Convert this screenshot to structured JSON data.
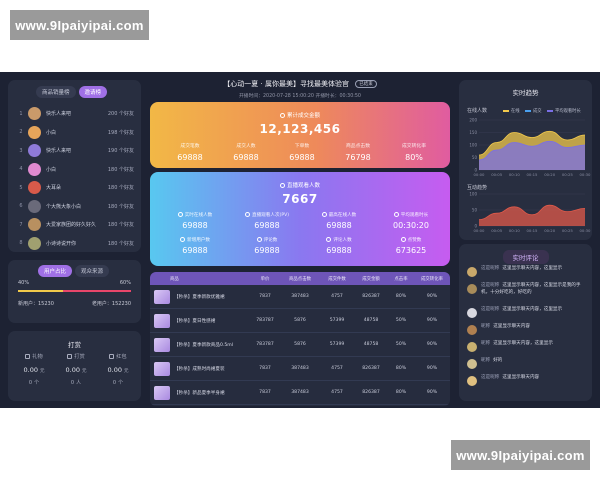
{
  "watermark": "www.9Ipaiyipai.com",
  "header": {
    "title": "【心动一夏 · 属你最美】寻找最美体验官",
    "badge": "已结束",
    "subtitle": "开播时间：2020-07-28 15:00:20      开播时长：00:30:50"
  },
  "ranking": {
    "tabs": [
      "商品销量榜",
      "邀请榜"
    ],
    "active_tab": 1,
    "rows": [
      {
        "rank": "1",
        "name": "快乐人来吧",
        "value": "200 个好友",
        "color": "#c99a6a"
      },
      {
        "rank": "2",
        "name": "小白",
        "value": "198 个好友",
        "color": "#e6a45a"
      },
      {
        "rank": "3",
        "name": "快乐人来吧",
        "value": "190 个好友",
        "color": "#8e7ad8"
      },
      {
        "rank": "4",
        "name": "小白",
        "value": "180 个好友",
        "color": "#e08ad0"
      },
      {
        "rank": "5",
        "name": "大耳朵",
        "value": "180 个好友",
        "color": "#d85a4a"
      },
      {
        "rank": "6",
        "name": "个大熊大象小白",
        "value": "180 个好友",
        "color": "#6a6a7a"
      },
      {
        "rank": "7",
        "name": "大爱家族团的好久好久",
        "value": "180 个好友",
        "color": "#b89060"
      },
      {
        "rank": "8",
        "name": "小诗诗说开你",
        "value": "180 个好友",
        "color": "#a0a070"
      }
    ]
  },
  "ratio": {
    "tabs": [
      "用户占比",
      "观众来源"
    ],
    "active_tab": 0,
    "left_pct": "40%",
    "right_pct": "60%",
    "left_fraction": 0.4,
    "new_users": "新用户：15230",
    "old_users": "老用户：152230"
  },
  "reward": {
    "title": "打赏",
    "items": [
      {
        "label": "礼物",
        "value": "0.00",
        "unit": "元",
        "count": "0",
        "count_unit": "个"
      },
      {
        "label": "打赏",
        "value": "0.00",
        "unit": "元",
        "count": "0",
        "count_unit": "人"
      },
      {
        "label": "红包",
        "value": "0.00",
        "unit": "元",
        "count": "0",
        "count_unit": "个"
      }
    ]
  },
  "sales_card": {
    "label": "累计成交金额",
    "total": "12,123,456",
    "stats": [
      {
        "label": "成交笔数",
        "value": "69888"
      },
      {
        "label": "成交人数",
        "value": "69888"
      },
      {
        "label": "下单数",
        "value": "69888"
      },
      {
        "label": "商品点击数",
        "value": "76798"
      },
      {
        "label": "成交转化率",
        "value": "80%"
      }
    ]
  },
  "viewer_card": {
    "label": "直播观看人数",
    "total": "7667",
    "stats": [
      {
        "label": "实时在线人数",
        "value": "69888"
      },
      {
        "label": "直播观看人次(PV)",
        "value": "69888"
      },
      {
        "label": "最高在线人数",
        "value": "69888"
      },
      {
        "label": "平均观看时长",
        "value": "00:30:20"
      },
      {
        "label": "新增用户数",
        "value": "69888"
      },
      {
        "label": "评论数",
        "value": "69888"
      },
      {
        "label": "评论人数",
        "value": "69888"
      },
      {
        "label": "点赞数",
        "value": "673625"
      }
    ]
  },
  "table": {
    "headers": [
      "商品",
      "单价",
      "商品点击数",
      "成交件数",
      "成交金额",
      "点击率",
      "成交转化率"
    ],
    "rows": [
      {
        "name": "【秒杀】夏季新款优雅裙",
        "price": "7837",
        "clicks": "387483",
        "qty": "4757",
        "amount": "826387",
        "ctr": "80%",
        "conv": "90%"
      },
      {
        "name": "【秒杀】夏日性感裙",
        "price": "783787",
        "clicks": "5876",
        "qty": "57399",
        "amount": "48758",
        "ctr": "50%",
        "conv": "90%"
      },
      {
        "name": "【秒杀】夏季新款商品0.5ml",
        "price": "783787",
        "clicks": "5876",
        "qty": "57399",
        "amount": "48758",
        "ctr": "50%",
        "conv": "90%"
      },
      {
        "name": "【秒杀】成熟时尚裙夏装",
        "price": "7837",
        "clicks": "387483",
        "qty": "4757",
        "amount": "826387",
        "ctr": "80%",
        "conv": "90%"
      },
      {
        "name": "【秒杀】新品夏季半身裙",
        "price": "7837",
        "clicks": "387483",
        "qty": "4757",
        "amount": "826387",
        "ctr": "80%",
        "conv": "90%"
      }
    ]
  },
  "trend": {
    "title": "实时趋势",
    "online_label": "在线人数",
    "legend": [
      "在线",
      "成交",
      "平均观看时长"
    ],
    "interact_label": "互动趋势",
    "x_ticks": [
      "00:00",
      "00:05",
      "00:10",
      "00:15",
      "00:20",
      "00:25",
      "00:30"
    ],
    "online_y_ticks": [
      "200",
      "150",
      "100",
      "50",
      "0"
    ],
    "interact_y_ticks": [
      "100",
      "50",
      "0"
    ],
    "colors": {
      "online": "#f2c94c",
      "sales": "#4aa0f0",
      "avg": "#7a6fe6",
      "interact": "#e05a4a"
    }
  },
  "chart_data": [
    {
      "type": "area",
      "x": [
        "00:00",
        "00:05",
        "00:10",
        "00:15",
        "00:20",
        "00:25",
        "00:30"
      ],
      "ylim": [
        0,
        200
      ],
      "series": [
        {
          "name": "在线",
          "values": [
            60,
            110,
            150,
            130,
            155,
            120,
            140
          ]
        },
        {
          "name": "平均观看时长",
          "values": [
            40,
            80,
            110,
            95,
            115,
            90,
            100
          ]
        }
      ]
    },
    {
      "type": "area",
      "x": [
        "00:00",
        "00:05",
        "00:10",
        "00:15",
        "00:20",
        "00:25",
        "00:30"
      ],
      "ylim": [
        0,
        100
      ],
      "series": [
        {
          "values": [
            20,
            40,
            60,
            35,
            65,
            45,
            55
          ]
        }
      ]
    }
  ],
  "comments": {
    "title": "实时评论",
    "items": [
      {
        "name": "这是昵称",
        "text": "这里显示聊天内容，这里显示",
        "color": "#c9a86a"
      },
      {
        "name": "这是昵称",
        "text": "这里显示聊天内容，这里显示是我的手机，十分好吃的，好吃的",
        "color": "#a88c5a"
      },
      {
        "name": "这是昵称",
        "text": "这里显示聊天内容，这里显示",
        "color": "#d8d8e0"
      },
      {
        "name": "昵称",
        "text": "这里显示聊天内容",
        "color": "#b08050"
      },
      {
        "name": "昵称",
        "text": "这里显示聊天内容，这里显示",
        "color": "#c8b070"
      },
      {
        "name": "昵称",
        "text": "好的",
        "color": "#d0c090"
      },
      {
        "name": "这是昵称",
        "text": "这里显示聊天内容",
        "color": "#e0c080"
      }
    ]
  }
}
